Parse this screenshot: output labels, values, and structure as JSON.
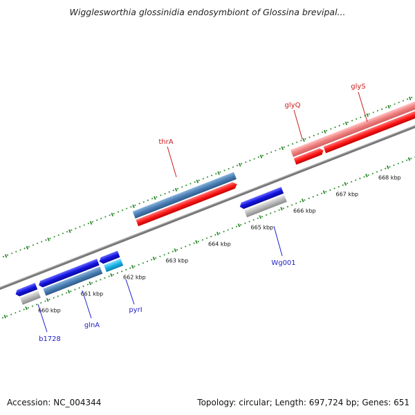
{
  "title": "Wigglesworthia glossinidia endosymbiont of Glossina brevipal...",
  "footer": {
    "accession": "Accession: NC_004344",
    "summary": "Topology: circular; Length: 697,724 bp; Genes: 651"
  },
  "scale": {
    "ticks": [
      {
        "label": "660 kbp",
        "kbp": 660
      },
      {
        "label": "661 kbp",
        "kbp": 661
      },
      {
        "label": "662 kbp",
        "kbp": 662
      },
      {
        "label": "663 kbp",
        "kbp": 663
      },
      {
        "label": "664 kbp",
        "kbp": 664
      },
      {
        "label": "665 kbp",
        "kbp": 665
      },
      {
        "label": "666 kbp",
        "kbp": 666
      },
      {
        "label": "667 kbp",
        "kbp": 667
      },
      {
        "label": "668 kbp",
        "kbp": 668
      }
    ]
  },
  "gene_labels": [
    {
      "name": "b1728",
      "color": "#1c1ccc"
    },
    {
      "name": "glnA",
      "color": "#1c1ccc"
    },
    {
      "name": "pyrI",
      "color": "#1c1ccc"
    },
    {
      "name": "Wg001",
      "color": "#1c1ccc"
    },
    {
      "name": "thrA",
      "color": "#cc1c1c"
    },
    {
      "name": "glyQ",
      "color": "#cc1c1c"
    },
    {
      "name": "glyS",
      "color": "#cc1c1c"
    }
  ],
  "colors": {
    "forward_cds": "#ff1a1a",
    "forward_light": "#f08080",
    "reverse_cds": "#1414e0",
    "steelblue": "#4a7fb5",
    "gray_feature": "#b8b8b8",
    "cyan_feature": "#1ab4e8",
    "backbone": "#777777",
    "tick_color": "#2a8a2a"
  }
}
